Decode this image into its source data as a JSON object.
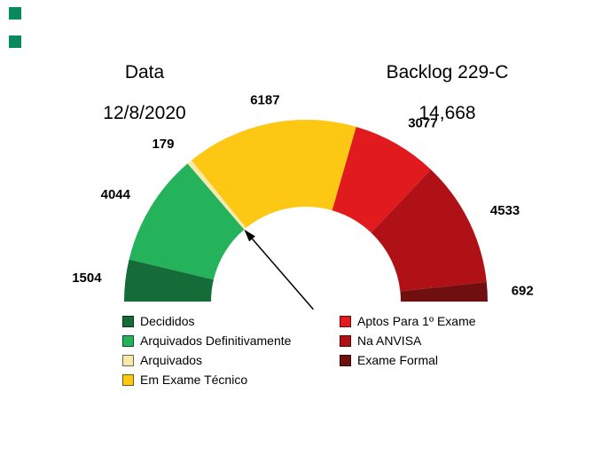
{
  "header": {
    "date_label": "Data",
    "date_value": "12/8/2020",
    "backlog_label": "Backlog 229-C",
    "backlog_value": "14,668"
  },
  "decorations": {
    "corner_squares": [
      "#0a8a5c",
      "#0a8a5c"
    ]
  },
  "chart_data": {
    "type": "pie",
    "variant": "half-donut-gauge",
    "title": "",
    "start_angle_deg": 180,
    "end_angle_deg": 0,
    "legend_position": "bottom-two-columns",
    "total_shown": "14,668",
    "segments": [
      {
        "label": "Decididos",
        "value": 1504,
        "color": "#156c38",
        "legend_column": "left"
      },
      {
        "label": "Arquivados Definitivamente",
        "value": 4044,
        "color": "#24b25a",
        "legend_column": "left"
      },
      {
        "label": "Arquivados",
        "value": 179,
        "color": "#f6e9ab",
        "legend_column": "left"
      },
      {
        "label": "Em Exame Técnico",
        "value": 6187,
        "color": "#fcc813",
        "legend_column": "left"
      },
      {
        "label": "Aptos Para 1º Exame",
        "value": 3077,
        "color": "#e01a1d",
        "legend_column": "right"
      },
      {
        "label": "Na ANVISA",
        "value": 4533,
        "color": "#af1116",
        "legend_column": "right"
      },
      {
        "label": "Exame Formal",
        "value": 692,
        "color": "#6f0f10",
        "legend_column": "right"
      }
    ],
    "annotation_arrow": {
      "description": "black arrow pointing to the inner rim at the boundary between Arquivados Definitivamente and Em Exame Técnico"
    }
  }
}
